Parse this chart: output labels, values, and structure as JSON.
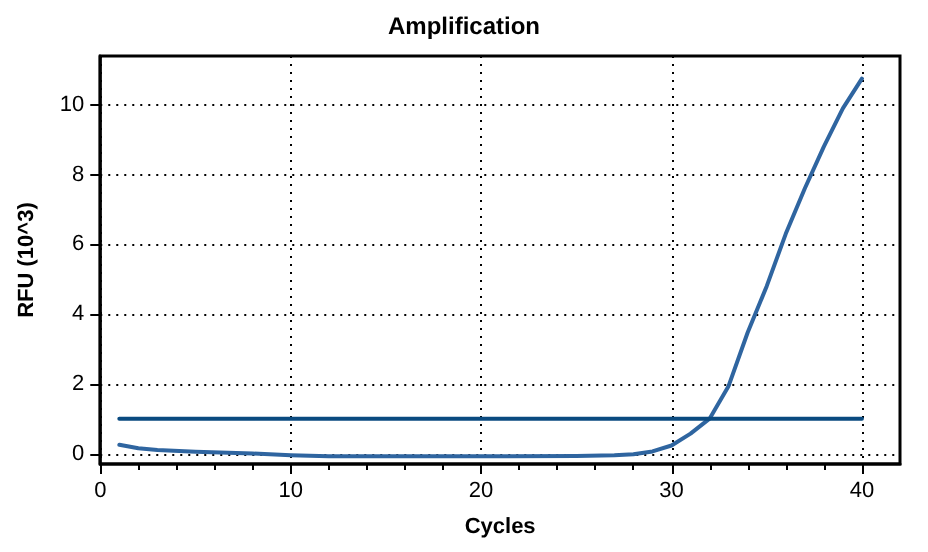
{
  "chart_data": {
    "type": "line",
    "title": "Amplification",
    "xlabel": "Cycles",
    "ylabel": "RFU (10^3)",
    "series": [
      {
        "color": "#2f65a0",
        "x": [
          1,
          2,
          3,
          5,
          8,
          10,
          12,
          15,
          20,
          25,
          27,
          28,
          29,
          30,
          31,
          32,
          33,
          34,
          35,
          36,
          37,
          38,
          39,
          40
        ],
        "values": [
          0.25,
          0.15,
          0.1,
          0.05,
          0,
          -0.05,
          -0.08,
          -0.08,
          -0.08,
          -0.07,
          -0.05,
          -0.02,
          0.06,
          0.23,
          0.57,
          1.0,
          1.94,
          3.47,
          4.8,
          6.3,
          7.6,
          8.8,
          9.9,
          10.75
        ]
      },
      {
        "color": "#0a4a80",
        "x": [
          1,
          40
        ],
        "values": [
          1,
          1
        ]
      }
    ],
    "xlim": [
      0,
      42
    ],
    "xticks": [
      0,
      10,
      20,
      30,
      40
    ],
    "ylim": [
      -0.3,
      11.4
    ],
    "yticks": [
      0,
      2,
      4,
      6,
      8,
      10
    ],
    "grid": true,
    "marker": "none",
    "line_style": "solid"
  }
}
